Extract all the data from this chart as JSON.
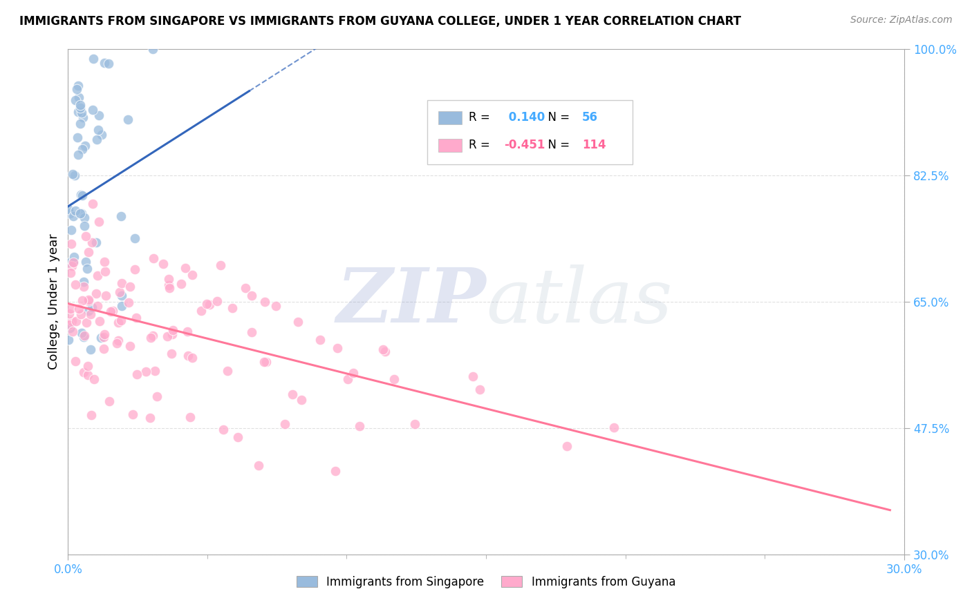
{
  "title": "IMMIGRANTS FROM SINGAPORE VS IMMIGRANTS FROM GUYANA COLLEGE, UNDER 1 YEAR CORRELATION CHART",
  "source_text": "Source: ZipAtlas.com",
  "ylabel": "College, Under 1 year",
  "xlabel": "",
  "xlim": [
    0.0,
    0.3
  ],
  "ylim": [
    0.3,
    1.0
  ],
  "ytick_positions": [
    0.3,
    0.475,
    0.65,
    0.825,
    1.0
  ],
  "yticklabels": [
    "30.0%",
    "47.5%",
    "65.0%",
    "82.5%",
    "100.0%"
  ],
  "r_singapore": 0.14,
  "n_singapore": 56,
  "r_guyana": -0.451,
  "n_guyana": 114,
  "singapore_color": "#99BBDD",
  "guyana_color": "#FFAACC",
  "singapore_trend_color": "#3366BB",
  "guyana_trend_color": "#FF7799",
  "watermark_zip": "ZIP",
  "watermark_atlas": "atlas",
  "watermark_color": "#BBCCEE",
  "legend_r1_color": "#99BBDD",
  "legend_r2_color": "#FFAACC",
  "background_color": "#FFFFFF",
  "grid_color": "#DDDDDD",
  "r_value_color_blue": "#44AAFF",
  "r_value_color_pink": "#FF6699",
  "n_value_color_blue": "#44AAFF",
  "n_value_color_pink": "#FF6699"
}
